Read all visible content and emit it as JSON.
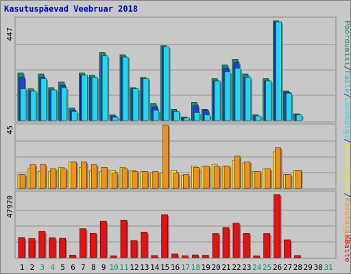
{
  "chart_data": [
    {
      "type": "bar",
      "title": "Kasutuspäevad Veebruar 2018",
      "categories": [
        "1",
        "2",
        "3",
        "4",
        "5",
        "6",
        "7",
        "8",
        "9",
        "10",
        "11",
        "12",
        "13",
        "14",
        "15",
        "16",
        "17",
        "18",
        "19",
        "20",
        "21",
        "22",
        "23",
        "24",
        "25",
        "26",
        "27",
        "28",
        "29",
        "30",
        "31"
      ],
      "weekend_days": [
        3,
        4,
        10,
        11,
        17,
        18,
        24,
        25,
        31
      ],
      "ymax_label": "447",
      "ylim": [
        0,
        447
      ],
      "series": [
        {
          "name": "Pöördumisi",
          "color": "#1e8c6a",
          "values": [
            210,
            140,
            205,
            145,
            170,
            55,
            210,
            200,
            300,
            25,
            290,
            145,
            190,
            75,
            330,
            50,
            15,
            80,
            50,
            185,
            245,
            270,
            205,
            25,
            185,
            440,
            130,
            30,
            0,
            0,
            0
          ]
        },
        {
          "name": "Faile",
          "color": "#2040e0",
          "values": [
            190,
            130,
            190,
            135,
            155,
            45,
            200,
            190,
            285,
            20,
            280,
            140,
            185,
            60,
            325,
            40,
            12,
            65,
            45,
            175,
            230,
            255,
            190,
            20,
            175,
            435,
            125,
            25,
            0,
            0,
            0
          ]
        },
        {
          "name": "Lehekülgi",
          "color": "#22d8f0",
          "values": [
            140,
            130,
            185,
            135,
            145,
            40,
            200,
            190,
            285,
            15,
            280,
            140,
            185,
            45,
            325,
            40,
            12,
            35,
            25,
            175,
            215,
            230,
            190,
            20,
            175,
            435,
            120,
            25,
            0,
            0,
            0
          ]
        }
      ]
    },
    {
      "type": "bar",
      "ymax_label": "45",
      "ylim": [
        0,
        45
      ],
      "series": [
        {
          "name": "Külastajaid",
          "color": "#f0e020",
          "values": [
            10,
            14,
            12,
            12,
            15,
            19,
            15,
            13,
            12,
            13,
            15,
            13,
            12,
            11,
            11,
            13,
            9,
            16,
            16,
            17,
            16,
            20,
            18,
            12,
            14,
            26,
            10,
            13,
            0,
            0,
            0
          ]
        },
        {
          "name": "Kasutajaid",
          "color": "#f09020",
          "values": [
            10,
            17,
            17,
            14,
            14,
            19,
            19,
            17,
            15,
            11,
            14,
            12,
            12,
            12,
            45,
            11,
            10,
            15,
            16,
            16,
            16,
            23,
            19,
            12,
            14,
            29,
            10,
            13,
            0,
            0,
            0
          ]
        }
      ]
    },
    {
      "type": "bar",
      "ymax_label": "47970",
      "ylim": [
        0,
        47970
      ],
      "series": [
        {
          "name": "KBaite",
          "color": "#e81010",
          "values": [
            15200,
            14500,
            20000,
            15100,
            14800,
            1800,
            22000,
            18500,
            27600,
            1200,
            28500,
            13000,
            19200,
            1500,
            32500,
            2700,
            1300,
            2000,
            1700,
            18400,
            22800,
            26200,
            18500,
            1200,
            18400,
            47970,
            13500,
            1500,
            0,
            0,
            0
          ]
        }
      ]
    }
  ],
  "right_legend": {
    "items": [
      {
        "text": "Pöördumisi",
        "color": "#1e8c6a"
      },
      {
        "text": "/",
        "color": "#202080"
      },
      {
        "text": "Faile",
        "color": "#22b8e0"
      },
      {
        "text": "/",
        "color": "#202080"
      },
      {
        "text": "Lehekülgi",
        "color": "#22d8f0"
      },
      {
        "text": "/",
        "color": "#202080"
      },
      {
        "text": "Külastajaid",
        "color": "#f0e020"
      },
      {
        "text": "/",
        "color": "#202080"
      },
      {
        "text": "Kasutajaid",
        "color": "#f09020"
      },
      {
        "text": "KBaite",
        "color": "#e81010"
      }
    ]
  },
  "colors": {
    "background": "#c8c8c8",
    "plot_bg": "#ffffff",
    "grid": "#909090",
    "title": "#0000c0",
    "weekday": "#000000",
    "weekend": "#1e8c6a"
  }
}
